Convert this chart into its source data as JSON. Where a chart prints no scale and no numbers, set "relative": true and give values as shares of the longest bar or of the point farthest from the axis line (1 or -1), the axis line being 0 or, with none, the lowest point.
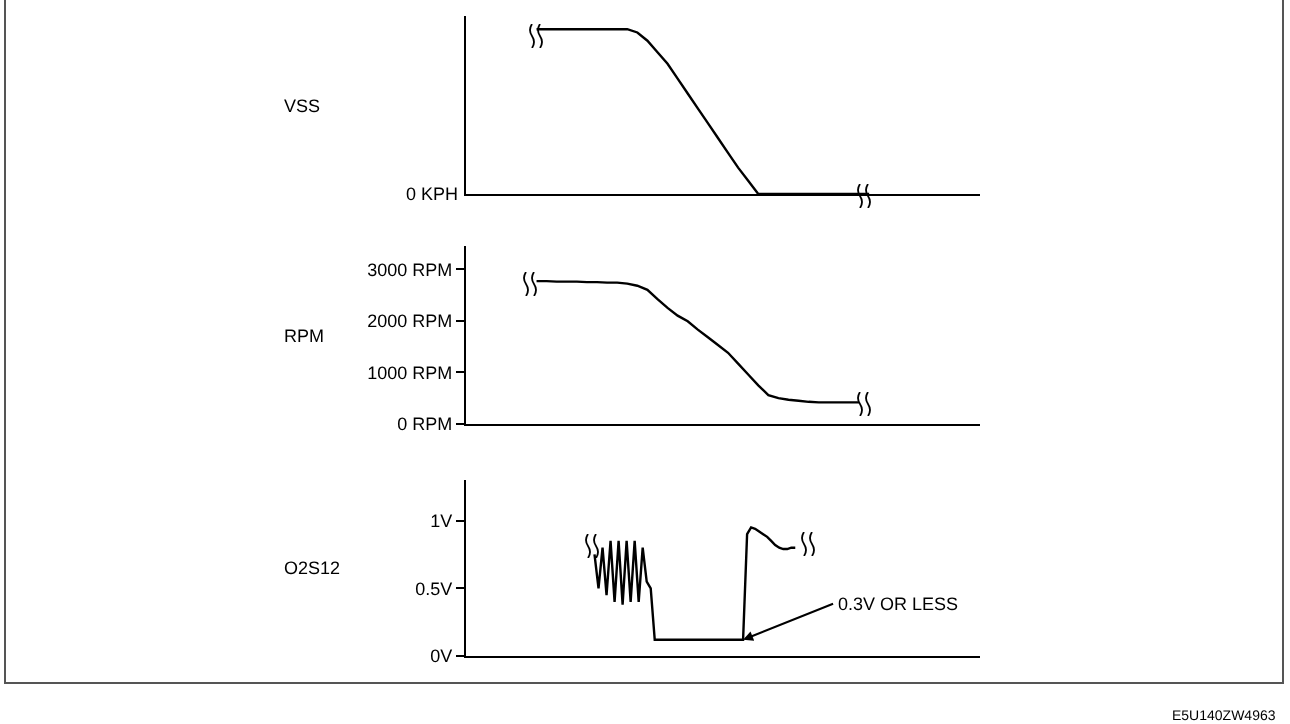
{
  "chart_data": [
    {
      "type": "line",
      "ylabel": "VSS",
      "relative": true,
      "tick_labels": false,
      "annotations": [
        "0 KPH"
      ],
      "categories": [
        null,
        null,
        null,
        null,
        null,
        null,
        null,
        null,
        null,
        null,
        null,
        null,
        null,
        null,
        null,
        null,
        null,
        null,
        null,
        null,
        null,
        null,
        null,
        null,
        null,
        null,
        null,
        null,
        null,
        null,
        null,
        null,
        null,
        null,
        null,
        null,
        null,
        null,
        null,
        null,
        null,
        null,
        null,
        null,
        null,
        null,
        null,
        null,
        null,
        null,
        null,
        null
      ],
      "series": [
        {
          "color": "#000000",
          "values": [
            null,
            null,
            null,
            null,
            null,
            null,
            null,
            1,
            1,
            1,
            1,
            1,
            1,
            1,
            1,
            1,
            1,
            0.98,
            0.93,
            0.86,
            0.79,
            0.7,
            0.61,
            0.52,
            0.43,
            0.34,
            0.25,
            0.16,
            0.08,
            0,
            0,
            0,
            0,
            0,
            0,
            0,
            0,
            0,
            0,
            0,
            0,
            null,
            null,
            null,
            null,
            null,
            null,
            null,
            null,
            null,
            null,
            null
          ]
        }
      ]
    },
    {
      "type": "line",
      "ylabel": "RPM",
      "tick_labels": "y",
      "ylim": [
        0,
        3450
      ],
      "yticks": [
        {
          "value": 0,
          "label": "0 RPM"
        },
        {
          "value": 1000,
          "label": "1000 RPM"
        },
        {
          "value": 2000,
          "label": "2000 RPM"
        },
        {
          "value": 3000,
          "label": "3000 RPM"
        }
      ],
      "categories": [
        null,
        null,
        null,
        null,
        null,
        null,
        null,
        null,
        null,
        null,
        null,
        null,
        null,
        null,
        null,
        null,
        null,
        null,
        null,
        null,
        null,
        null,
        null,
        null,
        null,
        null,
        null,
        null,
        null,
        null,
        null,
        null,
        null,
        null,
        null,
        null,
        null,
        null,
        null,
        null,
        null,
        null,
        null,
        null,
        null,
        null,
        null,
        null,
        null,
        null,
        null,
        null
      ],
      "series": [
        {
          "color": "#000000",
          "values": [
            null,
            null,
            null,
            null,
            null,
            null,
            null,
            2770,
            2770,
            2760,
            2760,
            2760,
            2750,
            2750,
            2740,
            2740,
            2720,
            2680,
            2600,
            2420,
            2250,
            2100,
            1990,
            1830,
            1680,
            1530,
            1380,
            1170,
            960,
            750,
            560,
            500,
            470,
            450,
            430,
            420,
            420,
            420,
            420,
            420,
            null,
            null,
            null,
            null,
            null,
            null,
            null,
            null,
            null,
            null,
            null,
            null
          ]
        }
      ]
    },
    {
      "type": "line",
      "ylabel": "O2S12",
      "tick_labels": "y",
      "ylim": [
        0,
        1.3
      ],
      "yticks": [
        {
          "value": 0,
          "label": "0V"
        },
        {
          "value": 0.5,
          "label": "0.5V"
        },
        {
          "value": 1,
          "label": "1V"
        }
      ],
      "annotations": [
        "0.3V OR LESS",
        "E5U140ZW4963"
      ],
      "categories": [
        null,
        null,
        null,
        null,
        null,
        null,
        null,
        null,
        null,
        null,
        null,
        null,
        null,
        null,
        null,
        null,
        null,
        null,
        null,
        null,
        null,
        null,
        null,
        null,
        null,
        null,
        null,
        null,
        null,
        null,
        null,
        null,
        null,
        null,
        null,
        null,
        null,
        null,
        null,
        null,
        null,
        null,
        null,
        null,
        null,
        null,
        null,
        null,
        null,
        null,
        null,
        null,
        null,
        null,
        null,
        null,
        null,
        null,
        null,
        null,
        null,
        null,
        null,
        null,
        null,
        null,
        null,
        null,
        null,
        null,
        null,
        null,
        null,
        null,
        null,
        null,
        null,
        null,
        null,
        null,
        null,
        null,
        null,
        null,
        null,
        null,
        null,
        null,
        null,
        null,
        null,
        null,
        null,
        null,
        null,
        null,
        null,
        null,
        null,
        null,
        null,
        null,
        null,
        null,
        null,
        null,
        null,
        null,
        null,
        null,
        null,
        null,
        null,
        null,
        null,
        null,
        null,
        null,
        null,
        null,
        null,
        null,
        null,
        null,
        null,
        null,
        null,
        null,
        null
      ],
      "series": [
        {
          "color": "#000000",
          "values": [
            null,
            null,
            null,
            null,
            null,
            null,
            null,
            null,
            null,
            null,
            null,
            null,
            null,
            null,
            null,
            null,
            null,
            null,
            null,
            null,
            null,
            null,
            null,
            null,
            null,
            null,
            null,
            null,
            null,
            null,
            null,
            null,
            0.75,
            0.5,
            0.8,
            0.45,
            0.85,
            0.4,
            0.85,
            0.38,
            0.85,
            0.4,
            0.85,
            0.4,
            0.8,
            0.55,
            0.5,
            0.12,
            0.12,
            0.12,
            0.12,
            0.12,
            0.12,
            0.12,
            0.12,
            0.12,
            0.12,
            0.12,
            0.12,
            0.12,
            0.12,
            0.12,
            0.12,
            0.12,
            0.12,
            0.12,
            0.12,
            0.12,
            0.12,
            0.12,
            0.9,
            0.95,
            0.94,
            0.92,
            0.9,
            0.88,
            0.85,
            0.82,
            0.8,
            0.79,
            0.79,
            0.8,
            0.8,
            null,
            null,
            null,
            null,
            null,
            null,
            null,
            null,
            null,
            null,
            null,
            null,
            null,
            null,
            null,
            null,
            null,
            null,
            null,
            null,
            null,
            null,
            null,
            null,
            null,
            null,
            null,
            null,
            null,
            null,
            null,
            null,
            null,
            null,
            null,
            null,
            null,
            null,
            null,
            null,
            null,
            null,
            null,
            null,
            null,
            null
          ]
        }
      ]
    }
  ]
}
